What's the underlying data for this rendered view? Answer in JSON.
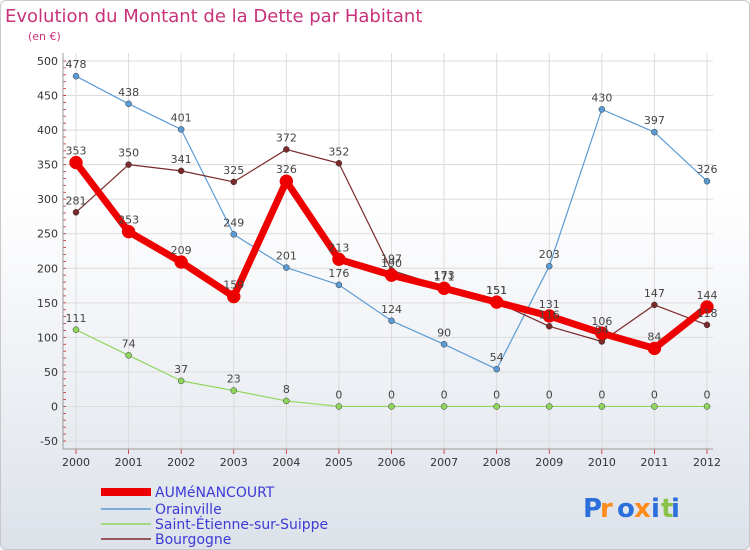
{
  "chart_data": {
    "type": "line",
    "title": "Evolution du Montant de la Dette par Habitant",
    "subtitle": "(en €)",
    "x": [
      "2000",
      "2001",
      "2002",
      "2003",
      "2004",
      "2005",
      "2006",
      "2007",
      "2008",
      "2009",
      "2010",
      "2011",
      "2012"
    ],
    "yticks": [
      -50,
      0,
      50,
      100,
      150,
      200,
      250,
      300,
      350,
      400,
      450,
      500
    ],
    "ylim": [
      -50,
      500
    ],
    "grid": true,
    "legend_position": "bottom-left",
    "series": [
      {
        "name": "Orainville",
        "color": "#5b9bd5",
        "values": [
          478,
          438,
          401,
          249,
          201,
          176,
          124,
          90,
          54,
          203,
          430,
          397,
          326
        ]
      },
      {
        "name": "Saint-Étienne-sur-Suippe",
        "color": "#8fd65c",
        "values": [
          111,
          74,
          37,
          23,
          8,
          0,
          0,
          0,
          0,
          0,
          0,
          0,
          0
        ]
      },
      {
        "name": "Bourgogne",
        "color": "#7a2a2a",
        "values": [
          281,
          350,
          341,
          325,
          372,
          352,
          197,
          173,
          151,
          116,
          94,
          147,
          118
        ]
      },
      {
        "name": "AUMéNANCOURT",
        "color": "#ee0000",
        "values": [
          353,
          253,
          209,
          159,
          326,
          213,
          190,
          171,
          151,
          131,
          106,
          84,
          144
        ]
      }
    ],
    "legend_order": [
      "AUMéNANCOURT",
      "Orainville",
      "Saint-Étienne-sur-Suippe",
      "Bourgogne"
    ]
  },
  "brand": {
    "logo_letters": [
      "P",
      "r",
      "o",
      "x",
      "i",
      "t",
      "i"
    ],
    "logo_colors": [
      "#2a6fdb",
      "#ff8c1a",
      "#2a6fdb",
      "#ff8c1a",
      "#2a6fdb",
      "#8bc34a",
      "#2a6fdb"
    ]
  }
}
